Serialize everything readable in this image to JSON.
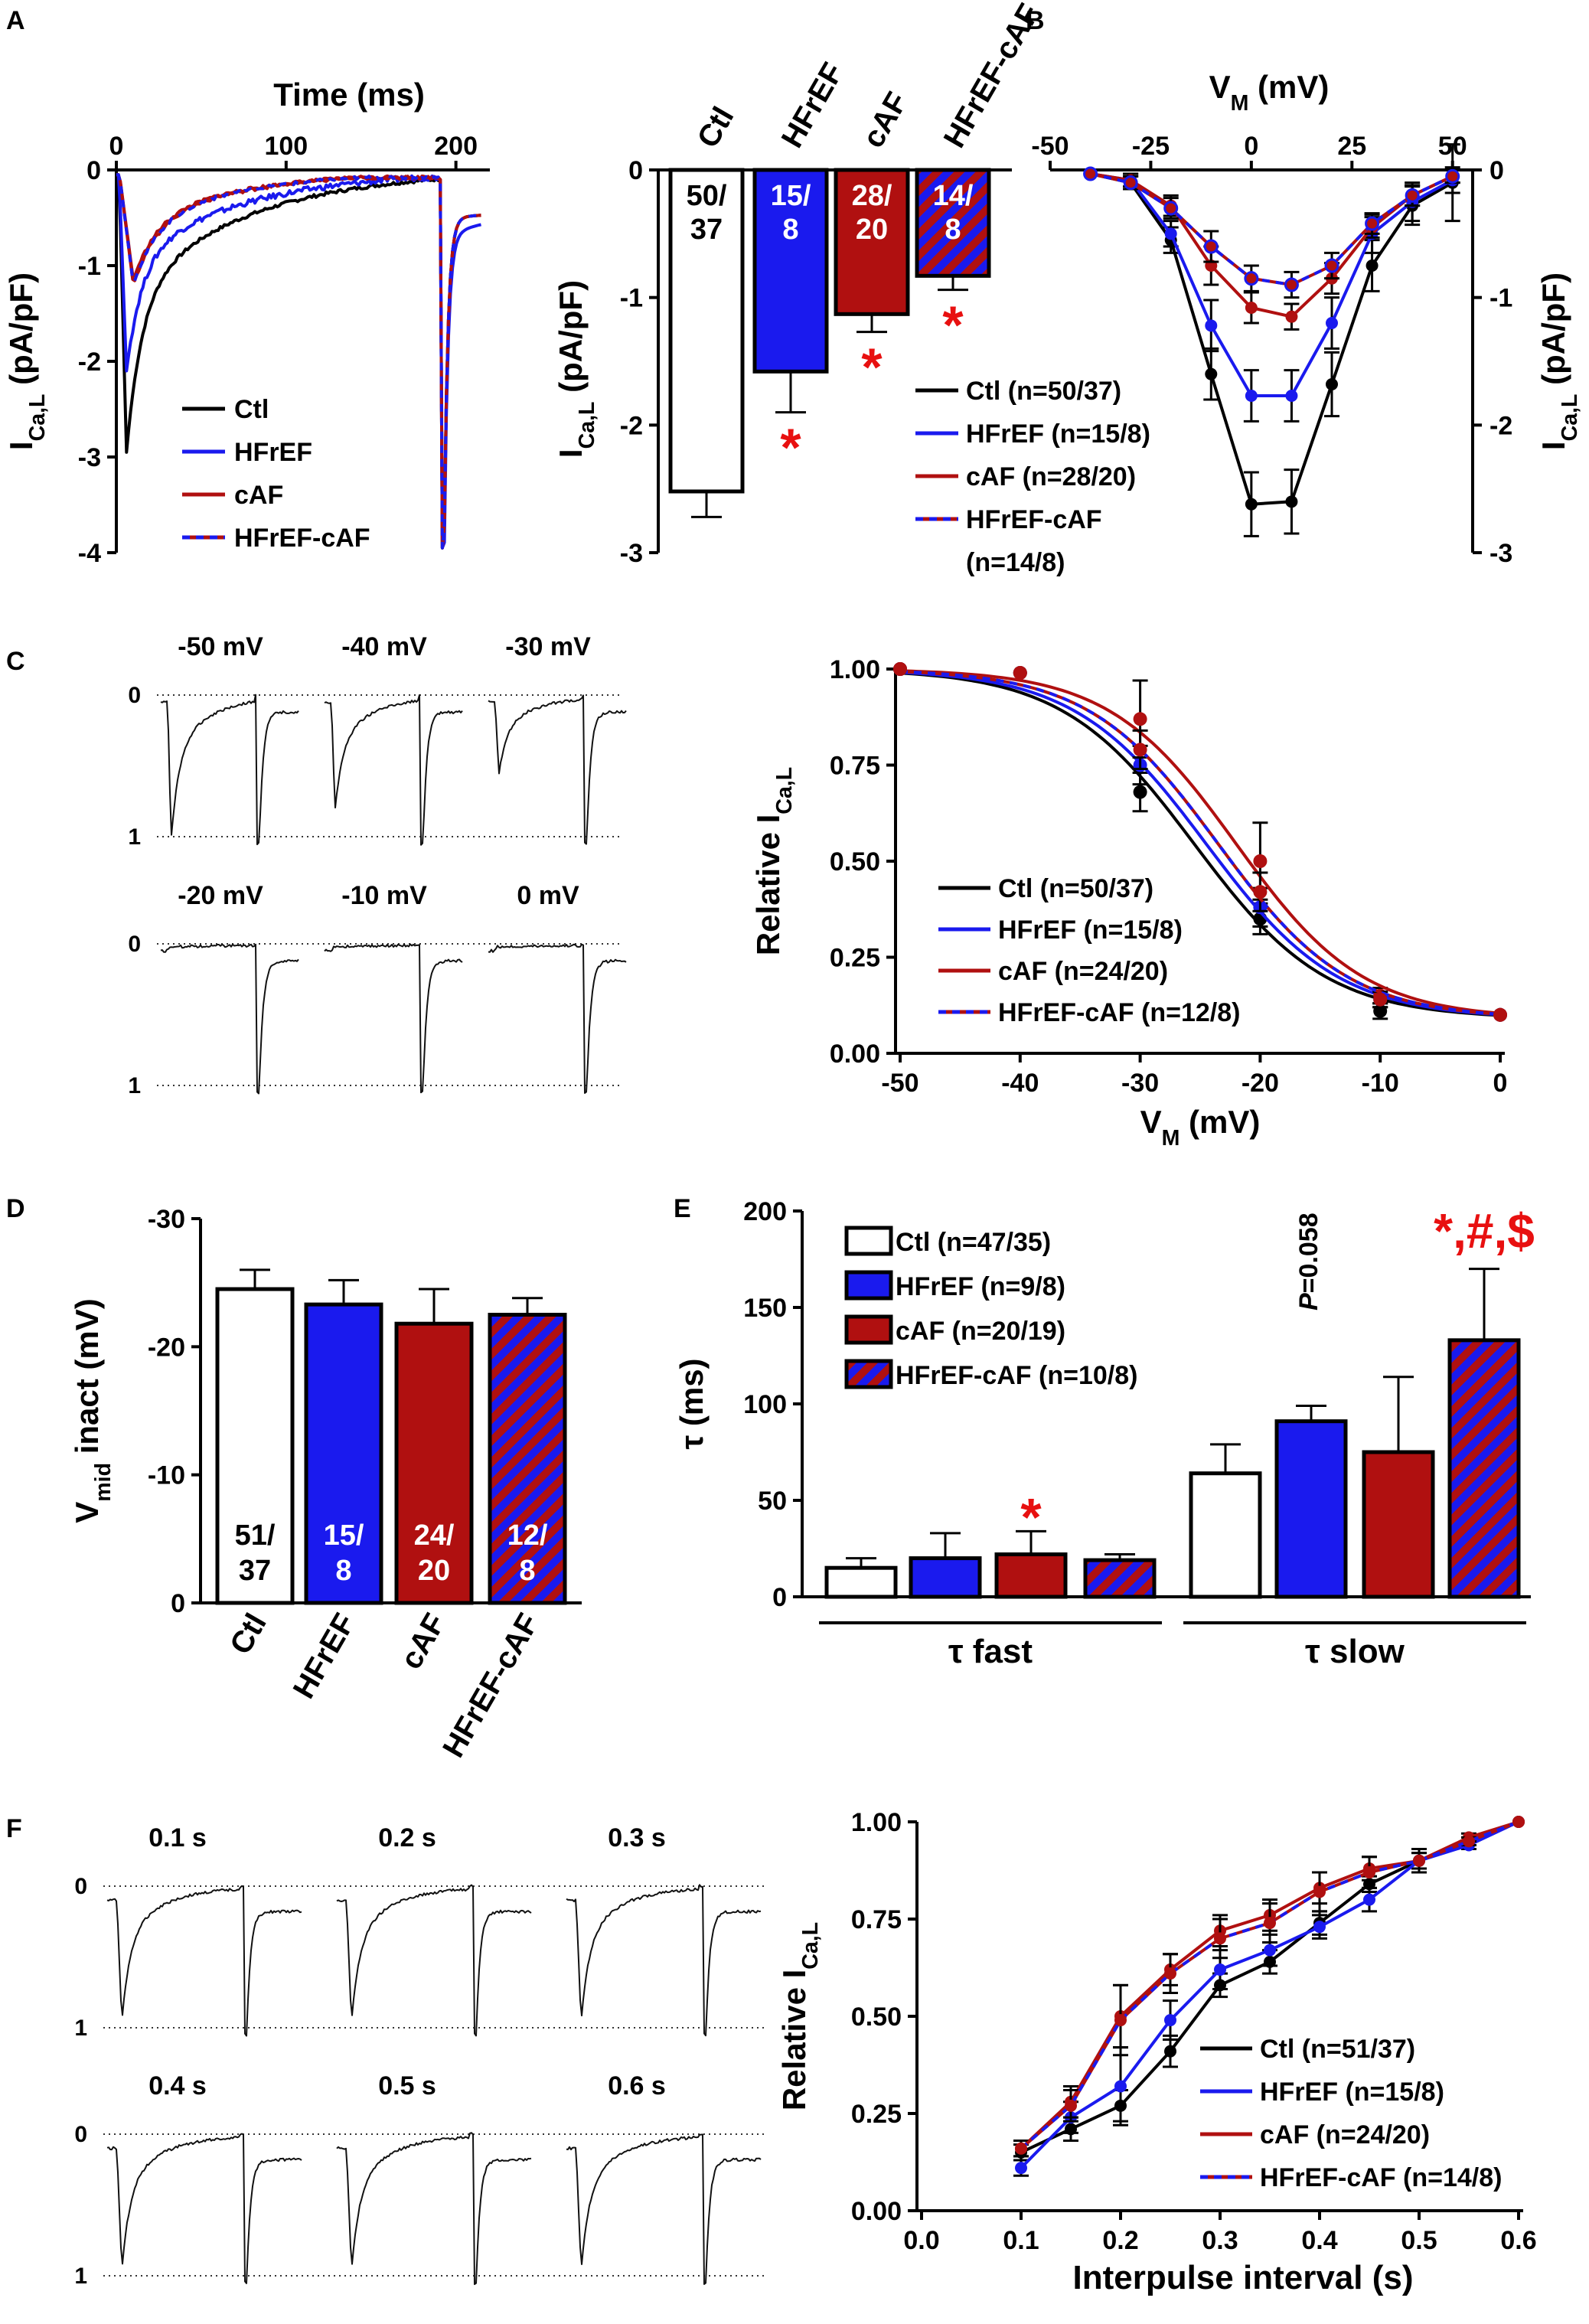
{
  "colors": {
    "ctl": "#000000",
    "hfref": "#1a1aee",
    "caf": "#b01010",
    "sig": "#e81010",
    "stripe_bg": "#1a1aee",
    "stripe_fg": "#b01010"
  },
  "panel_labels": {
    "a": "A",
    "b": "B",
    "c": "C",
    "d": "D",
    "e": "E",
    "f": "F"
  },
  "chart_data": [
    {
      "id": "A1",
      "type": "line",
      "title": "",
      "xlabel": "Time (ms)",
      "ylabel": "ICa,L (pA/pF)",
      "ylabel_main": "I",
      "ylabel_sub": "Ca,L",
      "ylabel_rest": " (pA/pF)",
      "xlim": [
        0,
        220
      ],
      "ylim": [
        -4,
        0
      ],
      "xticks": [
        0,
        100,
        200
      ],
      "yticks": [
        0,
        -1,
        -2,
        -3,
        -4
      ],
      "legend": [
        "Ctl",
        "HFrEF",
        "cAF",
        "HFrEF-cAF"
      ],
      "series": [
        {
          "name": "Ctl",
          "peak": -2.95,
          "t_peak": 6
        },
        {
          "name": "HFrEF",
          "peak": -2.1,
          "t_peak": 6
        },
        {
          "name": "cAF",
          "peak": -1.15,
          "t_peak": 10
        },
        {
          "name": "HFrEF-cAF",
          "peak": -1.2,
          "t_peak": 10
        }
      ]
    },
    {
      "id": "A2",
      "type": "bar",
      "ylabel": "ICa,L (pA/pF)",
      "ylabel_main": "I",
      "ylabel_sub": "Ca,L",
      "ylabel_rest": " (pA/pF)",
      "ylim": [
        -3,
        0
      ],
      "yticks": [
        0,
        -1,
        -2,
        -3
      ],
      "categories": [
        "Ctl",
        "HFrEF",
        "cAF",
        "HFrEF-cAF"
      ],
      "values": [
        -2.52,
        -1.58,
        -1.13,
        -0.83
      ],
      "errors": [
        0.2,
        0.32,
        0.14,
        0.11
      ],
      "n_labels": [
        [
          "50/",
          "37"
        ],
        [
          "15/",
          "8"
        ],
        [
          "28/",
          "20"
        ],
        [
          "14/",
          "8"
        ]
      ],
      "sig": [
        "",
        "*",
        "*",
        "*"
      ]
    },
    {
      "id": "B",
      "type": "line",
      "xlabel": "VM (mV)",
      "xlabel_main": "V",
      "xlabel_sub": "M",
      "xlabel_rest": " (mV)",
      "ylabel": "ICa,L (pA/pF)",
      "ylabel_main": "I",
      "ylabel_sub": "Ca,L",
      "ylabel_rest": " (pA/pF)",
      "xlim": [
        -50,
        55
      ],
      "ylim": [
        -3,
        0
      ],
      "xticks": [
        -50,
        -25,
        0,
        25,
        50
      ],
      "yticks": [
        0,
        -1,
        -2,
        -3
      ],
      "x": [
        -40,
        -30,
        -20,
        -10,
        0,
        10,
        20,
        30,
        40,
        50
      ],
      "series": [
        {
          "name": "Ctl (n=50/37)",
          "values": [
            -0.03,
            -0.1,
            -0.55,
            -1.6,
            -2.62,
            -2.6,
            -1.68,
            -0.75,
            -0.28,
            -0.1
          ],
          "errors": [
            0.03,
            0.05,
            0.1,
            0.2,
            0.25,
            0.25,
            0.25,
            0.2,
            0.15,
            0.3
          ]
        },
        {
          "name": "HFrEF (n=15/8)",
          "values": [
            -0.03,
            -0.08,
            -0.5,
            -1.22,
            -1.77,
            -1.77,
            -1.2,
            -0.5,
            -0.25,
            -0.08
          ],
          "errors": [
            0.03,
            0.05,
            0.1,
            0.2,
            0.2,
            0.2,
            0.2,
            0.15,
            0.15,
            0.1
          ]
        },
        {
          "name": "cAF (n=28/20)",
          "values": [
            -0.03,
            -0.08,
            -0.28,
            -0.75,
            -1.08,
            -1.15,
            -0.85,
            -0.45,
            -0.2,
            -0.05
          ],
          "errors": [
            0.03,
            0.05,
            0.08,
            0.15,
            0.12,
            0.1,
            0.12,
            0.08,
            0.08,
            0.05
          ]
        },
        {
          "name": "HFrEF-cAF (n=14/8)",
          "values": [
            -0.03,
            -0.1,
            -0.3,
            -0.6,
            -0.85,
            -0.9,
            -0.75,
            -0.42,
            -0.2,
            -0.05
          ],
          "errors": [
            0.03,
            0.05,
            0.08,
            0.12,
            0.1,
            0.1,
            0.1,
            0.08,
            0.08,
            0.05
          ]
        }
      ],
      "legend": [
        "Ctl (n=50/37)",
        "HFrEF (n=15/8)",
        "cAF (n=28/20)",
        "HFrEF-cAF",
        "(n=14/8)"
      ]
    },
    {
      "id": "C1",
      "type": "line",
      "description_labels": true,
      "voltages": [
        "-50 mV",
        "-40 mV",
        "-30 mV",
        "-20 mV",
        "-10 mV",
        "0 mV"
      ],
      "relative_amplitude": [
        1.0,
        0.8,
        0.55,
        0.0,
        0.0,
        0.0
      ],
      "scale_labels": [
        "0",
        "1"
      ]
    },
    {
      "id": "C2",
      "type": "line",
      "xlabel": "VM (mV)",
      "xlabel_main": "V",
      "xlabel_sub": "M",
      "xlabel_rest": " (mV)",
      "ylabel": "Relative ICa,L",
      "ylabel_main": "Relative I",
      "ylabel_sub": "Ca,L",
      "ylabel_rest": "",
      "xlim": [
        -50,
        0
      ],
      "ylim": [
        0,
        1
      ],
      "xticks": [
        -50,
        -40,
        -30,
        -20,
        -10,
        0
      ],
      "yticks": [
        "0.00",
        "0.25",
        "0.50",
        "0.75",
        "1.00"
      ],
      "x": [
        -50,
        -40,
        -30,
        -20,
        -10,
        0
      ],
      "series": [
        {
          "name": "Ctl (n=50/37)",
          "values": [
            1.0,
            0.99,
            0.68,
            0.35,
            0.11,
            0.1
          ],
          "errors": [
            0,
            0,
            0.05,
            0.04,
            0.02,
            0
          ],
          "fit_vhalf": -25.5,
          "fit_k": 5.5
        },
        {
          "name": "HFrEF (n=15/8)",
          "values": [
            1.0,
            0.99,
            0.75,
            0.38,
            0.14,
            0.1
          ],
          "errors": [
            0,
            0,
            0.05,
            0.05,
            0.02,
            0
          ],
          "fit_vhalf": -24.5,
          "fit_k": 5.5
        },
        {
          "name": "cAF (n=24/20)",
          "values": [
            1.0,
            0.99,
            0.87,
            0.5,
            0.15,
            0.1
          ],
          "errors": [
            0,
            0,
            0.1,
            0.1,
            0.02,
            0
          ],
          "fit_vhalf": -22,
          "fit_k": 5.3
        },
        {
          "name": "HFrEF-cAF (n=12/8)",
          "values": [
            1.0,
            0.99,
            0.79,
            0.42,
            0.14,
            0.1
          ],
          "errors": [
            0,
            0,
            0.05,
            0.05,
            0.02,
            0
          ],
          "fit_vhalf": -23.5,
          "fit_k": 5.4
        }
      ],
      "legend": [
        "Ctl (n=50/37)",
        "HFrEF (n=15/8)",
        "cAF (n=24/20)",
        "HFrEF-cAF (n=12/8)"
      ]
    },
    {
      "id": "D",
      "type": "bar",
      "ylabel": "Vmid inact (mV)",
      "ylabel_main": "V",
      "ylabel_sub": "mid",
      "ylabel_rest": " inact (mV)",
      "ylim": [
        0,
        -30
      ],
      "yticks": [
        -30,
        -20,
        -10,
        0
      ],
      "categories": [
        "Ctl",
        "HFrEF",
        "cAF",
        "HFrEF-cAF"
      ],
      "values": [
        -24.5,
        -23.3,
        -21.8,
        -22.5
      ],
      "errors": [
        1.5,
        1.9,
        2.7,
        1.3
      ],
      "n_labels": [
        [
          "51/",
          "37"
        ],
        [
          "15/",
          "8"
        ],
        [
          "24/",
          "20"
        ],
        [
          "12/",
          "8"
        ]
      ]
    },
    {
      "id": "E",
      "type": "bar",
      "ylabel": "τ (ms)",
      "ylim": [
        0,
        200
      ],
      "yticks": [
        0,
        50,
        100,
        150,
        200
      ],
      "groups": [
        "τ fast",
        "τ slow"
      ],
      "categories": [
        "Ctl (n=47/35)",
        "HFrEF (n=9/8)",
        "cAF (n=20/19)",
        "HFrEF-cAF (n=10/8)"
      ],
      "series": [
        {
          "name": "τ fast",
          "values": [
            15,
            20,
            22,
            19
          ],
          "errors": [
            5,
            13,
            12,
            3
          ]
        },
        {
          "name": "τ slow",
          "values": [
            64,
            91,
            75,
            133
          ],
          "errors": [
            15,
            8,
            39,
            37
          ]
        }
      ],
      "annotations": {
        "fast_caf": "*",
        "slow_hfref_p": "P",
        "slow_hfref_p_val": "=0.058",
        "slow_hfref_caf": "*,#,$"
      }
    },
    {
      "id": "F1",
      "type": "line",
      "intervals": [
        "0.1 s",
        "0.2 s",
        "0.3 s",
        "0.4 s",
        "0.5 s",
        "0.6 s"
      ],
      "recovery": [
        0.12,
        0.35,
        0.6,
        0.75,
        0.85,
        0.95
      ],
      "scale_labels": [
        "0",
        "1"
      ]
    },
    {
      "id": "F2",
      "type": "line",
      "xlabel": "Interpulse interval (s)",
      "ylabel": "Relative ICa,L",
      "ylabel_main": "Relative I",
      "ylabel_sub": "Ca,L",
      "ylabel_rest": "",
      "xlim": [
        0,
        0.6
      ],
      "ylim": [
        0,
        1
      ],
      "xticks": [
        "0.0",
        "0.1",
        "0.2",
        "0.3",
        "0.4",
        "0.5",
        "0.6"
      ],
      "yticks": [
        "0.00",
        "0.25",
        "0.50",
        "0.75",
        "1.00"
      ],
      "x": [
        0.1,
        0.15,
        0.2,
        0.25,
        0.3,
        0.35,
        0.4,
        0.45,
        0.5,
        0.55,
        0.6
      ],
      "series": [
        {
          "name": "Ctl (n=51/37)",
          "values": [
            0.15,
            0.21,
            0.27,
            0.41,
            0.58,
            0.64,
            0.74,
            0.84,
            0.9,
            0.95,
            1.0
          ],
          "errors": [
            0.02,
            0.03,
            0.04,
            0.04,
            0.03,
            0.03,
            0.03,
            0.02,
            0.02,
            0.01,
            0
          ]
        },
        {
          "name": "HFrEF (n=15/8)",
          "values": [
            0.11,
            0.24,
            0.32,
            0.49,
            0.62,
            0.67,
            0.73,
            0.8,
            0.9,
            0.94,
            1.0
          ],
          "errors": [
            0.02,
            0.04,
            0.1,
            0.05,
            0.05,
            0.04,
            0.03,
            0.03,
            0.02,
            0.01,
            0
          ]
        },
        {
          "name": "cAF (n=24/20)",
          "values": [
            0.16,
            0.28,
            0.5,
            0.62,
            0.72,
            0.76,
            0.83,
            0.88,
            0.9,
            0.96,
            1.0
          ],
          "errors": [
            0.02,
            0.04,
            0.08,
            0.04,
            0.04,
            0.04,
            0.04,
            0.03,
            0.03,
            0.01,
            0
          ]
        },
        {
          "name": "HFrEF-cAF (n=14/8)",
          "values": [
            0.16,
            0.27,
            0.49,
            0.61,
            0.7,
            0.74,
            0.82,
            0.87,
            0.9,
            0.95,
            1.0
          ],
          "errors": [
            0.02,
            0.04,
            0.09,
            0.05,
            0.05,
            0.05,
            0.05,
            0.04,
            0.03,
            0.01,
            0
          ]
        }
      ],
      "legend": [
        "Ctl (n=51/37)",
        "HFrEF (n=15/8)",
        "cAF (n=24/20)",
        "HFrEF-cAF (n=14/8)"
      ]
    }
  ]
}
